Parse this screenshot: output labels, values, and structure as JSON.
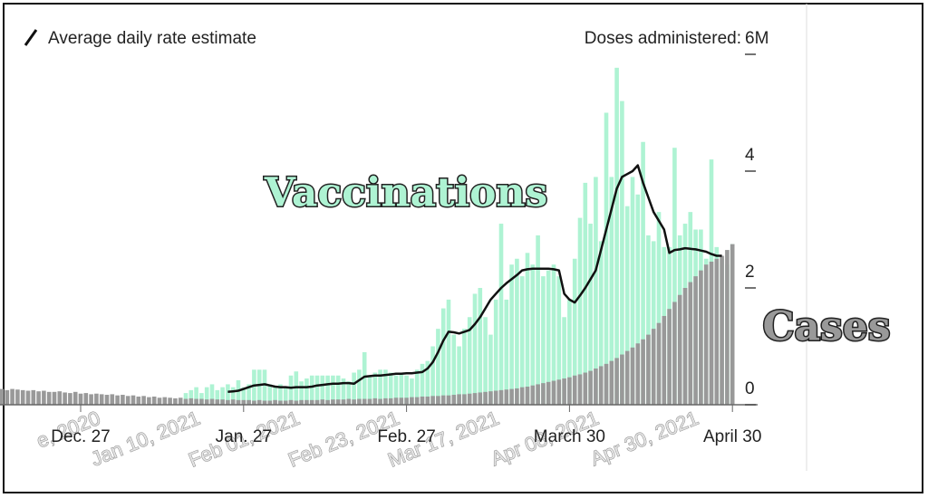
{
  "chart_data": {
    "type": "bar",
    "legend_line_label": "Average daily rate estimate",
    "ylabel": "Doses administered:",
    "ylim": [
      0,
      6
    ],
    "yticks": [
      0,
      2,
      4,
      {
        "value": 6,
        "label": "6M"
      }
    ],
    "categories": [
      null,
      null,
      null,
      null,
      null,
      null,
      null,
      null,
      null,
      null,
      null,
      null,
      null,
      null,
      null,
      "Dec. 27",
      null,
      null,
      null,
      null,
      null,
      null,
      null,
      null,
      null,
      null,
      null,
      null,
      null,
      null,
      null,
      null,
      null,
      null,
      null,
      null,
      null,
      null,
      null,
      null,
      null,
      null,
      null,
      null,
      null,
      null,
      "Jan. 27",
      null,
      null,
      null,
      null,
      null,
      null,
      null,
      null,
      null,
      null,
      null,
      null,
      null,
      null,
      null,
      null,
      null,
      null,
      null,
      null,
      null,
      null,
      null,
      null,
      null,
      null,
      null,
      null,
      null,
      null,
      "Feb. 27",
      null,
      null,
      null,
      null,
      null,
      null,
      null,
      null,
      null,
      null,
      null,
      null,
      null,
      null,
      null,
      null,
      null,
      null,
      null,
      null,
      null,
      null,
      null,
      null,
      null,
      null,
      null,
      null,
      null,
      null,
      "March 30",
      null,
      null,
      null,
      null,
      null,
      null,
      null,
      null,
      null,
      null,
      null,
      null,
      null,
      null,
      null,
      null,
      null,
      null,
      null,
      null,
      null,
      null,
      null,
      null,
      null,
      null,
      null,
      null,
      null,
      null,
      "April 30"
    ],
    "x2_labels": [
      "e, 2020",
      "Jan 10, 2021",
      "Feb 01, 2021",
      "Feb 23, 2021",
      "Mar 17, 2021",
      "Apr 08, 2021",
      "Apr 30, 2021"
    ],
    "series": [
      {
        "name": "Vaccinations",
        "color": "#aef3d3",
        "values": [
          null,
          null,
          null,
          null,
          null,
          null,
          null,
          null,
          null,
          null,
          null,
          null,
          null,
          null,
          null,
          null,
          null,
          null,
          null,
          null,
          null,
          null,
          null,
          null,
          null,
          null,
          null,
          null,
          null,
          null,
          null,
          null,
          null,
          null,
          null,
          0.2,
          0.25,
          0.3,
          0.2,
          0.3,
          0.35,
          0.25,
          0.3,
          0.35,
          0.3,
          0.42,
          0.3,
          0.35,
          0.6,
          0.6,
          0.6,
          0.35,
          0.3,
          0.35,
          0.3,
          0.5,
          0.57,
          0.4,
          0.45,
          0.5,
          0.5,
          0.5,
          0.5,
          0.5,
          0.5,
          0.45,
          0.4,
          0.55,
          0.6,
          0.9,
          0.5,
          0.55,
          0.6,
          0.6,
          0.55,
          0.5,
          0.55,
          0.5,
          0.45,
          0.6,
          0.7,
          0.75,
          1.0,
          1.3,
          1.65,
          1.8,
          1.2,
          1.0,
          1.3,
          1.5,
          1.9,
          2.0,
          1.5,
          1.2,
          1.8,
          3.1,
          1.8,
          2.4,
          2.5,
          2.2,
          2.6,
          2.4,
          2.9,
          2.2,
          2.3,
          2.4,
          2.2,
          1.5,
          1.8,
          2.5,
          3.2,
          3.8,
          3.1,
          3.9,
          2.8,
          5.0,
          3.9,
          5.77,
          5.2,
          3.4,
          3.9,
          3.6,
          4.5,
          2.9,
          2.8,
          3.3,
          2.7,
          2.7,
          4.4,
          2.9,
          3.1,
          3.3,
          3.0,
          3.0,
          2.5,
          4.2,
          2.7,
          2.5,
          2.4,
          2.75
        ]
      },
      {
        "name": "Cases",
        "color": "#999999",
        "values": [
          0.27,
          0.25,
          0.27,
          0.26,
          0.25,
          0.24,
          0.25,
          0.23,
          0.24,
          0.22,
          0.22,
          0.23,
          0.21,
          0.2,
          0.22,
          0.19,
          0.2,
          0.18,
          0.19,
          0.18,
          0.17,
          0.18,
          0.16,
          0.17,
          0.15,
          0.16,
          0.14,
          0.15,
          0.13,
          0.14,
          0.12,
          0.13,
          0.12,
          0.11,
          0.12,
          0.1,
          0.11,
          0.1,
          0.1,
          0.09,
          0.1,
          0.09,
          0.09,
          0.08,
          0.09,
          0.08,
          0.08,
          0.08,
          0.07,
          0.08,
          0.07,
          0.07,
          0.08,
          0.07,
          0.07,
          0.08,
          0.07,
          0.08,
          0.08,
          0.08,
          0.08,
          0.09,
          0.08,
          0.09,
          0.09,
          0.09,
          0.1,
          0.09,
          0.1,
          0.1,
          0.1,
          0.11,
          0.1,
          0.11,
          0.11,
          0.12,
          0.12,
          0.12,
          0.13,
          0.13,
          0.14,
          0.14,
          0.15,
          0.15,
          0.16,
          0.16,
          0.17,
          0.18,
          0.18,
          0.19,
          0.2,
          0.21,
          0.22,
          0.23,
          0.24,
          0.25,
          0.26,
          0.27,
          0.28,
          0.3,
          0.31,
          0.33,
          0.35,
          0.37,
          0.39,
          0.41,
          0.43,
          0.45,
          0.47,
          0.5,
          0.52,
          0.55,
          0.58,
          0.62,
          0.66,
          0.7,
          0.75,
          0.8,
          0.86,
          0.92,
          0.98,
          1.05,
          1.12,
          1.2,
          1.3,
          1.4,
          1.52,
          1.64,
          1.76,
          1.88,
          2.0,
          2.1,
          2.2,
          2.3,
          2.4,
          2.45,
          2.5,
          2.55,
          2.65,
          2.75
        ]
      },
      {
        "name": "Average daily rate estimate",
        "type": "line",
        "color": "#111111",
        "values": [
          null,
          null,
          null,
          null,
          null,
          null,
          null,
          null,
          null,
          null,
          null,
          null,
          null,
          null,
          null,
          null,
          null,
          null,
          null,
          null,
          null,
          null,
          null,
          null,
          null,
          null,
          null,
          null,
          null,
          null,
          null,
          null,
          null,
          null,
          null,
          null,
          null,
          null,
          null,
          null,
          null,
          null,
          null,
          0.22,
          0.23,
          0.24,
          0.27,
          0.3,
          0.33,
          0.34,
          0.35,
          0.33,
          0.31,
          0.3,
          0.3,
          0.29,
          0.3,
          0.3,
          0.3,
          0.31,
          0.33,
          0.34,
          0.35,
          0.36,
          0.36,
          0.37,
          0.37,
          0.36,
          0.42,
          0.48,
          0.49,
          0.5,
          0.5,
          0.51,
          0.52,
          0.53,
          0.53,
          0.54,
          0.54,
          0.55,
          0.56,
          0.62,
          0.73,
          0.9,
          1.1,
          1.25,
          1.24,
          1.22,
          1.25,
          1.28,
          1.38,
          1.5,
          1.65,
          1.8,
          1.9,
          2.0,
          2.08,
          2.15,
          2.22,
          2.3,
          2.32,
          2.33,
          2.33,
          2.33,
          2.33,
          2.32,
          2.3,
          1.9,
          1.8,
          1.75,
          1.87,
          2.0,
          2.15,
          2.3,
          2.65,
          3.0,
          3.35,
          3.7,
          3.9,
          3.95,
          4.0,
          4.1,
          3.8,
          3.55,
          3.3,
          3.15,
          3.0,
          2.6,
          2.65,
          2.66,
          2.68,
          2.67,
          2.66,
          2.64,
          2.62,
          2.58,
          2.55,
          2.55,
          null,
          null
        ]
      }
    ]
  }
}
